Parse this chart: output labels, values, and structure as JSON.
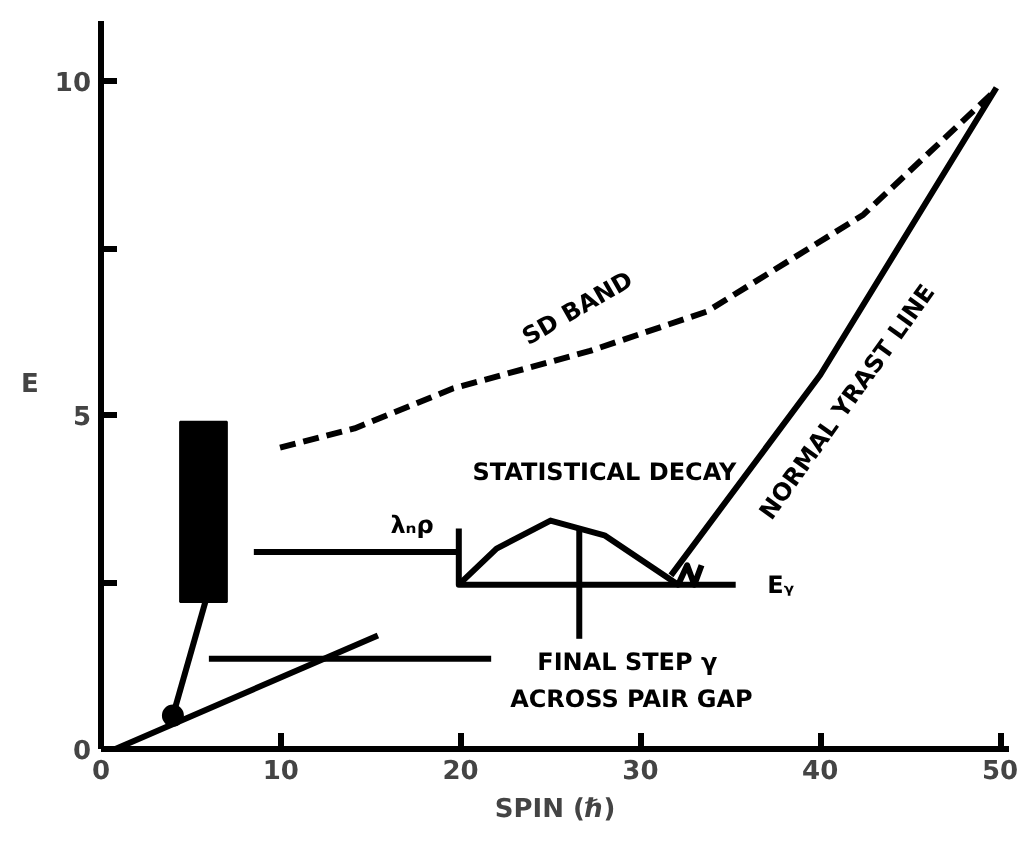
{
  "chart_data": {
    "type": "line",
    "xlabel": "SPIN (ℏ)",
    "ylabel": "E",
    "xlim": [
      0,
      50.5
    ],
    "ylim": [
      0,
      10.9
    ],
    "xticks": [
      0,
      10,
      20,
      30,
      40,
      50
    ],
    "yticks": [
      0,
      {
        "value": 2.5,
        "label": null
      },
      5,
      {
        "value": 7.5,
        "label": null
      },
      10
    ],
    "grid": false,
    "series": [
      {
        "line_style": "dashed",
        "color": "#000000",
        "x": [
          49.5,
          42.4,
          33.7,
          27.2,
          19.6,
          14.1,
          9.8
        ],
        "values": [
          9.8,
          8.0,
          6.55,
          5.96,
          5.4,
          4.8,
          4.5
        ]
      },
      {
        "type": "line",
        "line_style": "solid",
        "color": "#000000",
        "x": [
          31.7,
          40,
          49.8
        ],
        "values": [
          2.6,
          5.6,
          9.9
        ]
      },
      {
        "type": "line",
        "line_style": "solid",
        "color": "#000000",
        "x": [
          0.8,
          15.4
        ],
        "values": [
          0,
          1.7
        ]
      },
      {
        "type": "line",
        "line_style": "solid",
        "color": "#000000",
        "x": [
          5.8,
          4.0
        ],
        "values": [
          2.2,
          0.5
        ]
      },
      {
        "type": "scatter",
        "marker": "circle",
        "color": "#000000",
        "x": [
          4.0
        ],
        "values": [
          0.5
        ]
      },
      {
        "type": "bar",
        "color": "#000000",
        "x": [
          5.7
        ],
        "base": [
          2.2
        ],
        "values": [
          2.7
        ]
      },
      {
        "type": "line",
        "line_style": "solid",
        "color": "#000000",
        "x": [
          19.9,
          19.9,
          35.3
        ],
        "values": [
          3.3,
          2.46,
          2.46
        ]
      },
      {
        "type": "line",
        "line_style": "solid",
        "color": "#000000",
        "x": [
          19.9,
          22,
          25,
          28,
          32.1,
          32.6,
          33.0,
          33.4
        ],
        "values": [
          2.46,
          3.0,
          3.42,
          3.2,
          2.46,
          2.75,
          2.46,
          2.75
        ]
      },
      {
        "type": "line",
        "line_style": "solid",
        "color": "#000000",
        "x": [
          8.5,
          19.9
        ],
        "values": [
          2.95,
          2.95
        ]
      },
      {
        "type": "line",
        "line_style": "solid",
        "color": "#000000",
        "x": [
          21.7,
          6.0
        ],
        "values": [
          1.35,
          1.35
        ]
      },
      {
        "type": "line",
        "line_style": "solid",
        "color": "#000000",
        "x": [
          26.6,
          26.6
        ],
        "values": [
          1.65,
          3.3
        ]
      }
    ],
    "annotations": [
      "SD BAND",
      "NORMAL YRAST LINE",
      "STATISTICAL DECAY",
      "λₙρ",
      "Eᵧ",
      "FINAL STEP  γ",
      "ACROSS PAIR GAP"
    ]
  }
}
